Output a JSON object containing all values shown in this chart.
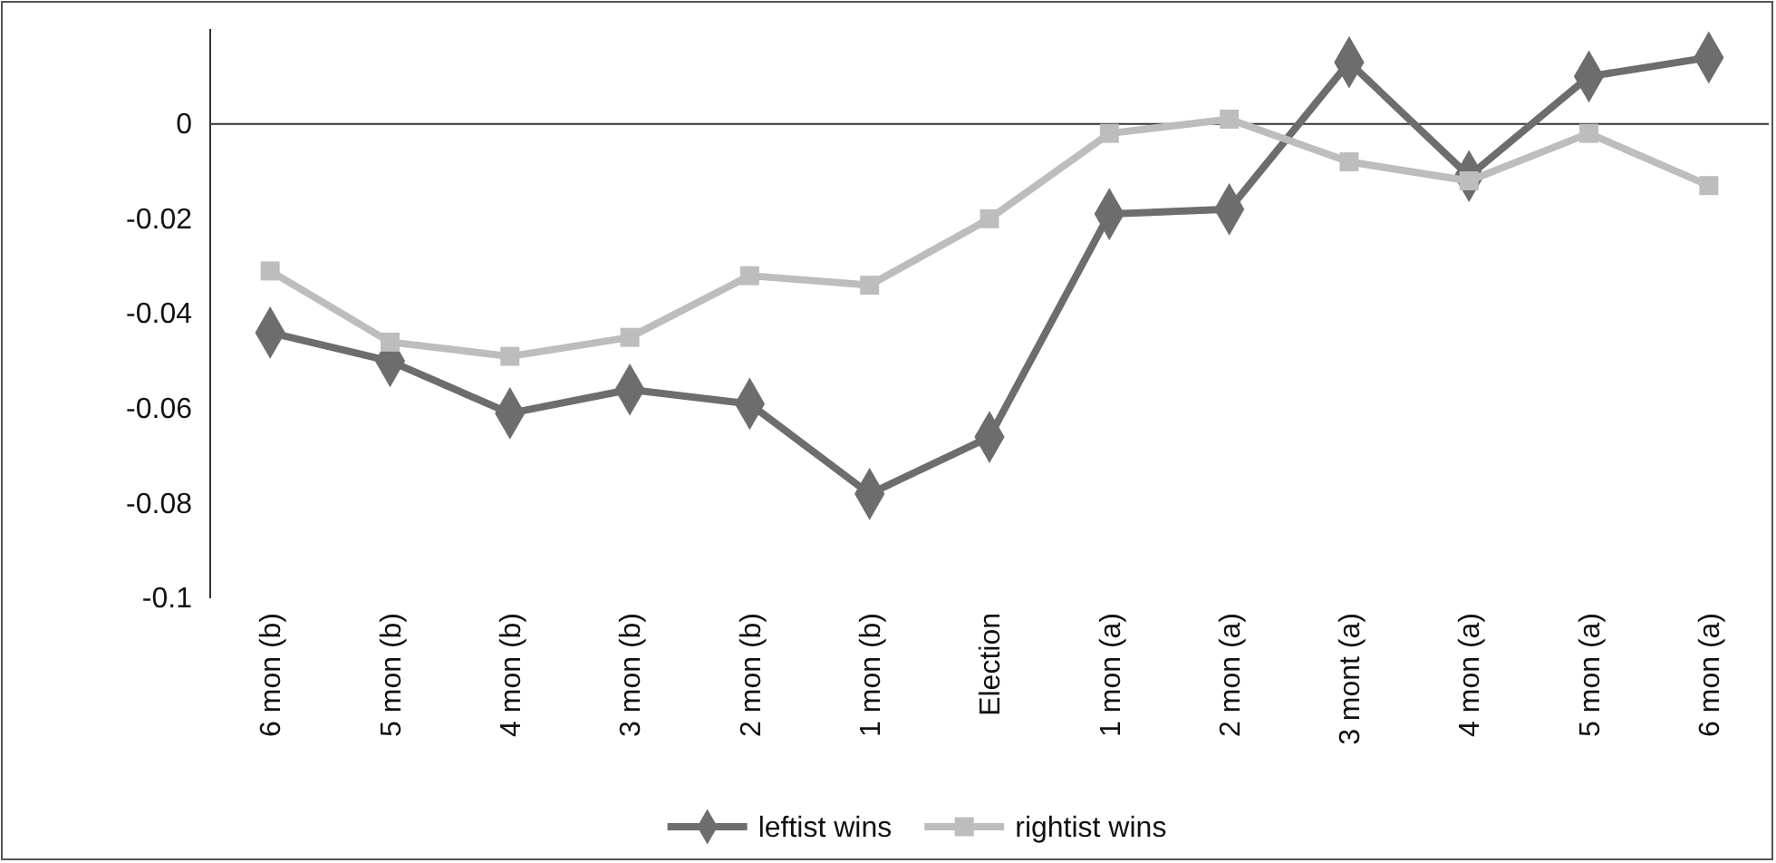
{
  "chart_data": {
    "type": "line",
    "categories": [
      "6 mon (b)",
      "5 mon (b)",
      "4 mon (b)",
      "3 mon (b)",
      "2 mon (b)",
      "1 mon (b)",
      "Election",
      "1 mon (a)",
      "2 mon (a)",
      "3 mont (a)",
      "4 mon (a)",
      "5 mon (a)",
      "6 mon (a)"
    ],
    "series": [
      {
        "name": "leftist wins",
        "color": "#6d6d6d",
        "marker": "diamond",
        "values": [
          -0.044,
          -0.05,
          -0.061,
          -0.056,
          -0.059,
          -0.078,
          -0.066,
          -0.019,
          -0.018,
          0.013,
          -0.011,
          0.01,
          0.014
        ]
      },
      {
        "name": "rightist wins",
        "color": "#bdbdbd",
        "marker": "square",
        "values": [
          -0.031,
          -0.046,
          -0.049,
          -0.045,
          -0.032,
          -0.034,
          -0.02,
          -0.002,
          0.001,
          -0.008,
          -0.012,
          -0.002,
          -0.013
        ]
      }
    ],
    "ylim": [
      -0.1,
      0.02
    ],
    "yticks": [
      -0.1,
      -0.08,
      -0.06,
      -0.04,
      -0.02,
      0
    ],
    "grid": false,
    "ref_lines": [
      {
        "axis": "y",
        "value": 0,
        "color": "#333333"
      }
    ],
    "legend": "bottom",
    "line_style": "solid"
  }
}
